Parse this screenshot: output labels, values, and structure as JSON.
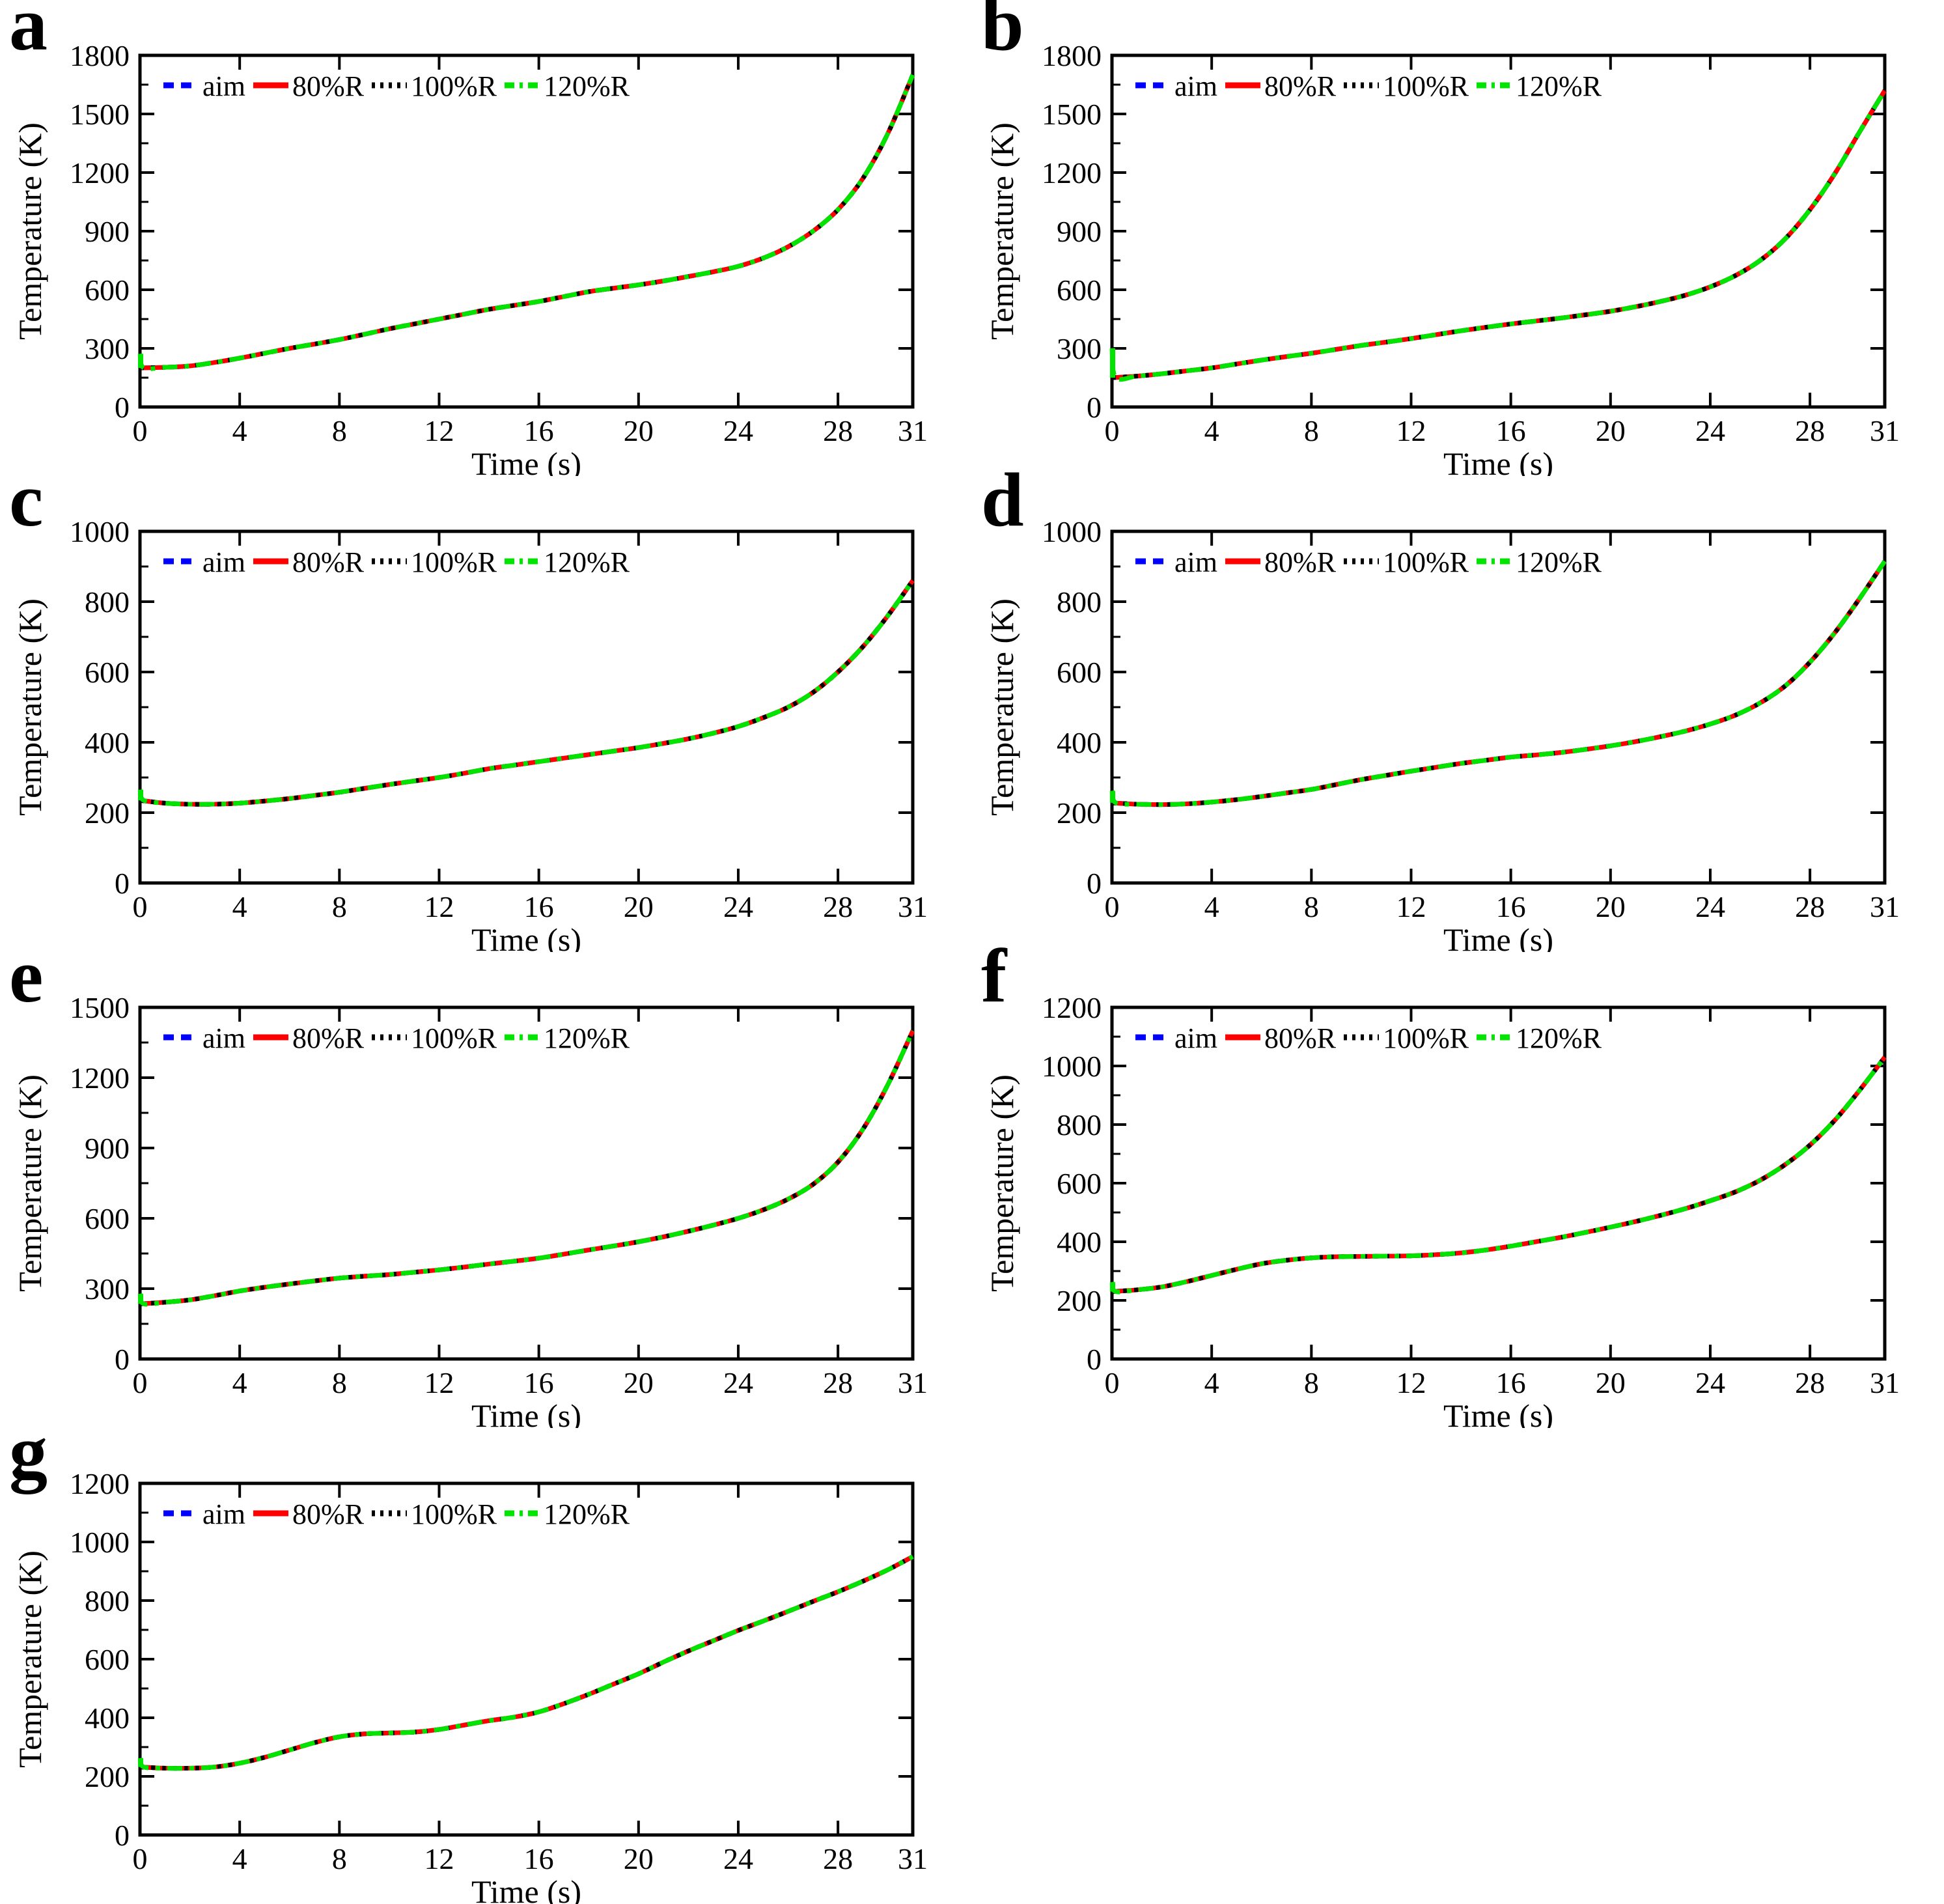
{
  "figure": {
    "xlabel": "Time (s)",
    "ylabel": "Temperature (K)",
    "xlim": [
      0,
      31
    ],
    "x_ticks": [
      0,
      4,
      8,
      12,
      16,
      20,
      24,
      28,
      31
    ],
    "grid": false,
    "legend_position": "top-left-inside",
    "legend": [
      {
        "label": "aim",
        "color": "#0000ff",
        "linestyle": "dashed"
      },
      {
        "label": "80%R",
        "color": "#ff0000",
        "linestyle": "solid"
      },
      {
        "label": "100%R",
        "color": "#000000",
        "linestyle": "dotted"
      },
      {
        "label": "120%R",
        "color": "#00e400",
        "linestyle": "dashdot"
      }
    ],
    "note": "All four series overlap almost exactly in every panel; the 120%R (green dash-dot) curve lies on top with black dots and red segments of the underlying curves visible in its gaps. The 120%R curve shows a brief vertical transient at t=0."
  },
  "chart_data": [
    {
      "id": "a",
      "type": "line",
      "xlabel": "Time (s)",
      "ylabel": "Temperature (K)",
      "ylim": [
        0,
        1800
      ],
      "ytick_step": 300,
      "series_names": [
        "aim",
        "80%R",
        "100%R",
        "120%R"
      ],
      "x": [
        0,
        1,
        2,
        3,
        4,
        5,
        6,
        7,
        8,
        9,
        10,
        11,
        12,
        13,
        14,
        15,
        16,
        17,
        18,
        19,
        20,
        21,
        22,
        23,
        24,
        25,
        26,
        27,
        28,
        29,
        30,
        31
      ],
      "y_shared": [
        200,
        203,
        210,
        228,
        250,
        275,
        300,
        322,
        345,
        372,
        400,
        425,
        450,
        475,
        500,
        520,
        540,
        565,
        590,
        608,
        625,
        645,
        668,
        692,
        720,
        762,
        820,
        900,
        1010,
        1170,
        1400,
        1700
      ],
      "spike_120R_at_t0": 272
    },
    {
      "id": "b",
      "type": "line",
      "xlabel": "Time (s)",
      "ylabel": "Temperature (K)",
      "ylim": [
        0,
        1800
      ],
      "ytick_step": 300,
      "series_names": [
        "aim",
        "80%R",
        "100%R",
        "120%R"
      ],
      "x": [
        0,
        1,
        2,
        3,
        4,
        5,
        6,
        7,
        8,
        9,
        10,
        11,
        12,
        13,
        14,
        15,
        16,
        17,
        18,
        19,
        20,
        21,
        22,
        23,
        24,
        25,
        26,
        27,
        28,
        29,
        30,
        31
      ],
      "y_shared": [
        150,
        158,
        170,
        185,
        200,
        220,
        240,
        258,
        275,
        295,
        315,
        332,
        350,
        370,
        390,
        408,
        425,
        440,
        455,
        472,
        490,
        513,
        540,
        572,
        615,
        672,
        750,
        860,
        1010,
        1195,
        1410,
        1620
      ],
      "spike_120R_at_t0": 300
    },
    {
      "id": "c",
      "type": "line",
      "xlabel": "Time (s)",
      "ylabel": "Temperature (K)",
      "ylim": [
        0,
        1000
      ],
      "ytick_step": 200,
      "series_names": [
        "aim",
        "80%R",
        "100%R",
        "120%R"
      ],
      "x": [
        0,
        1,
        2,
        3,
        4,
        5,
        6,
        7,
        8,
        9,
        10,
        11,
        12,
        13,
        14,
        15,
        16,
        17,
        18,
        19,
        20,
        21,
        22,
        23,
        24,
        25,
        26,
        27,
        28,
        29,
        30,
        31
      ],
      "y_shared": [
        235,
        227,
        224,
        224,
        227,
        233,
        240,
        249,
        258,
        269,
        280,
        290,
        300,
        312,
        325,
        335,
        345,
        355,
        365,
        375,
        385,
        397,
        410,
        426,
        445,
        470,
        500,
        542,
        600,
        672,
        760,
        860
      ],
      "spike_120R_at_t0": 265
    },
    {
      "id": "d",
      "type": "line",
      "xlabel": "Time (s)",
      "ylabel": "Temperature (K)",
      "ylim": [
        0,
        1000
      ],
      "ytick_step": 200,
      "series_names": [
        "aim",
        "80%R",
        "100%R",
        "120%R"
      ],
      "x": [
        0,
        1,
        2,
        3,
        4,
        5,
        6,
        7,
        8,
        9,
        10,
        11,
        12,
        13,
        14,
        15,
        16,
        17,
        18,
        19,
        20,
        21,
        22,
        23,
        24,
        25,
        26,
        27,
        28,
        29,
        30,
        31
      ],
      "y_shared": [
        228,
        224,
        223,
        225,
        230,
        237,
        246,
        256,
        266,
        280,
        294,
        306,
        318,
        329,
        340,
        349,
        358,
        364,
        371,
        380,
        390,
        402,
        416,
        432,
        452,
        477,
        512,
        560,
        628,
        712,
        810,
        915
      ],
      "spike_120R_at_t0": 262
    },
    {
      "id": "e",
      "type": "line",
      "xlabel": "Time (s)",
      "ylabel": "Temperature (K)",
      "ylim": [
        0,
        1500
      ],
      "ytick_step": 300,
      "series_names": [
        "aim",
        "80%R",
        "100%R",
        "120%R"
      ],
      "x": [
        0,
        1,
        2,
        3,
        4,
        5,
        6,
        7,
        8,
        9,
        10,
        11,
        12,
        13,
        14,
        15,
        16,
        17,
        18,
        19,
        20,
        21,
        22,
        23,
        24,
        25,
        26,
        27,
        28,
        29,
        30,
        31
      ],
      "y_shared": [
        235,
        242,
        252,
        270,
        290,
        306,
        320,
        333,
        345,
        353,
        360,
        370,
        380,
        392,
        405,
        417,
        430,
        447,
        465,
        482,
        500,
        521,
        545,
        571,
        600,
        636,
        682,
        745,
        840,
        980,
        1170,
        1400
      ],
      "spike_120R_at_t0": 278
    },
    {
      "id": "f",
      "type": "line",
      "xlabel": "Time (s)",
      "ylabel": "Temperature (K)",
      "ylim": [
        0,
        1200
      ],
      "ytick_step": 200,
      "series_names": [
        "aim",
        "80%R",
        "100%R",
        "120%R"
      ],
      "x": [
        0,
        1,
        2,
        3,
        4,
        5,
        6,
        7,
        8,
        9,
        10,
        11,
        12,
        13,
        14,
        15,
        16,
        17,
        18,
        19,
        20,
        21,
        22,
        23,
        24,
        25,
        26,
        27,
        28,
        29,
        30,
        31
      ],
      "y_shared": [
        230,
        236,
        246,
        264,
        285,
        306,
        325,
        337,
        345,
        349,
        350,
        351,
        352,
        356,
        362,
        372,
        385,
        400,
        415,
        432,
        450,
        469,
        490,
        513,
        540,
        570,
        610,
        663,
        730,
        815,
        918,
        1030
      ],
      "spike_120R_at_t0": 262
    },
    {
      "id": "g",
      "type": "line",
      "xlabel": "Time (s)",
      "ylabel": "Temperature (K)",
      "ylim": [
        0,
        1200
      ],
      "ytick_step": 200,
      "series_names": [
        "aim",
        "80%R",
        "100%R",
        "120%R"
      ],
      "x": [
        0,
        1,
        2,
        3,
        4,
        5,
        6,
        7,
        8,
        9,
        10,
        11,
        12,
        13,
        14,
        15,
        16,
        17,
        18,
        19,
        20,
        21,
        22,
        23,
        24,
        25,
        26,
        27,
        28,
        29,
        30,
        31
      ],
      "y_shared": [
        232,
        228,
        228,
        232,
        245,
        265,
        290,
        315,
        335,
        345,
        348,
        351,
        360,
        375,
        390,
        402,
        420,
        448,
        480,
        515,
        550,
        590,
        628,
        663,
        698,
        730,
        763,
        797,
        830,
        866,
        905,
        950
      ],
      "spike_120R_at_t0": 262
    }
  ]
}
